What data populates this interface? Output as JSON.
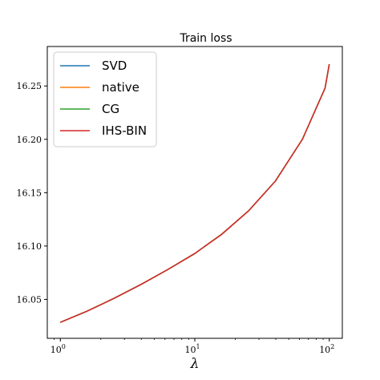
{
  "chart_data": {
    "type": "line",
    "title": "Train loss",
    "xlabel": "λ",
    "ylabel": "",
    "xscale": "log",
    "xlim": [
      0.8,
      125
    ],
    "ylim": [
      16.0135,
      16.287
    ],
    "grid": false,
    "legend_position": "top-left",
    "x_ticks": [
      1,
      10,
      100
    ],
    "x_tick_labels": [
      {
        "base": "10",
        "exp": "0"
      },
      {
        "base": "10",
        "exp": "1"
      },
      {
        "base": "10",
        "exp": "2"
      }
    ],
    "y_ticks": [
      16.05,
      16.1,
      16.15,
      16.2,
      16.25
    ],
    "y_tick_labels": [
      "16.05",
      "16.10",
      "16.15",
      "16.20",
      "16.25"
    ],
    "x": [
      1,
      1.585,
      2.512,
      3.981,
      6.31,
      10,
      15.85,
      25.12,
      39.81,
      63.1,
      93,
      100
    ],
    "series": [
      {
        "name": "SVD",
        "color": "#1f77b4",
        "values": [
          16.0285,
          16.039,
          16.051,
          16.064,
          16.078,
          16.093,
          16.111,
          16.133,
          16.161,
          16.2,
          16.248,
          16.2705
        ]
      },
      {
        "name": "native",
        "color": "#ff7f0e",
        "values": [
          16.0285,
          16.039,
          16.051,
          16.064,
          16.078,
          16.093,
          16.111,
          16.133,
          16.161,
          16.2,
          16.248,
          16.2705
        ]
      },
      {
        "name": "CG",
        "color": "#2ca02c",
        "values": [
          16.0285,
          16.039,
          16.051,
          16.064,
          16.078,
          16.093,
          16.111,
          16.133,
          16.161,
          16.2,
          16.248,
          16.2705
        ]
      },
      {
        "name": "IHS-BIN",
        "color": "#d62728",
        "values": [
          16.0285,
          16.039,
          16.051,
          16.064,
          16.078,
          16.093,
          16.111,
          16.133,
          16.161,
          16.2,
          16.248,
          16.2705
        ]
      }
    ]
  }
}
